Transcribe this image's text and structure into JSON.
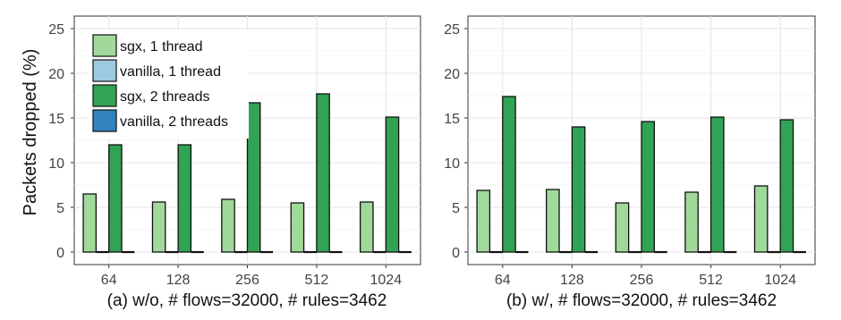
{
  "figure": {
    "ylabel": "Packets dropped (%)"
  },
  "legend": {
    "items": [
      {
        "label": "sgx, 1 thread",
        "color": "#a1d99b"
      },
      {
        "label": "vanilla, 1 thread",
        "color": "#9ecae1"
      },
      {
        "label": "sgx, 2 threads",
        "color": "#31a354"
      },
      {
        "label": "vanilla, 2 threads",
        "color": "#3182bd"
      }
    ],
    "placement": "top-left of left panel"
  },
  "chart_data": [
    {
      "type": "bar",
      "caption": "(a) w/o, # flows=32000, # rules=3462",
      "categories": [
        "64",
        "128",
        "256",
        "512",
        "1024"
      ],
      "ylim": [
        0,
        25
      ],
      "yticks": [
        "0",
        "5",
        "10",
        "15",
        "20",
        "25"
      ],
      "grid": true,
      "series": [
        {
          "name": "sgx, 1 thread",
          "values": [
            6.5,
            5.6,
            5.9,
            5.5,
            5.6
          ]
        },
        {
          "name": "vanilla, 1 thread",
          "values": [
            0,
            0,
            0,
            0,
            0
          ]
        },
        {
          "name": "sgx, 2 threads",
          "values": [
            12.0,
            12.0,
            16.7,
            17.7,
            15.1
          ]
        },
        {
          "name": "vanilla, 2 threads",
          "values": [
            0,
            0,
            0,
            0,
            0
          ]
        }
      ]
    },
    {
      "type": "bar",
      "caption": "(b) w/, # flows=32000, # rules=3462",
      "categories": [
        "64",
        "128",
        "256",
        "512",
        "1024"
      ],
      "ylim": [
        0,
        25
      ],
      "yticks": [
        "0",
        "5",
        "10",
        "15",
        "20",
        "25"
      ],
      "grid": true,
      "series": [
        {
          "name": "sgx, 1 thread",
          "values": [
            6.9,
            7.0,
            5.5,
            6.7,
            7.4
          ]
        },
        {
          "name": "vanilla, 1 thread",
          "values": [
            0,
            0,
            0,
            0,
            0
          ]
        },
        {
          "name": "sgx, 2 threads",
          "values": [
            17.4,
            14.0,
            14.6,
            15.1,
            14.8
          ]
        },
        {
          "name": "vanilla, 2 threads",
          "values": [
            0,
            0,
            0,
            0,
            0
          ]
        }
      ]
    }
  ]
}
